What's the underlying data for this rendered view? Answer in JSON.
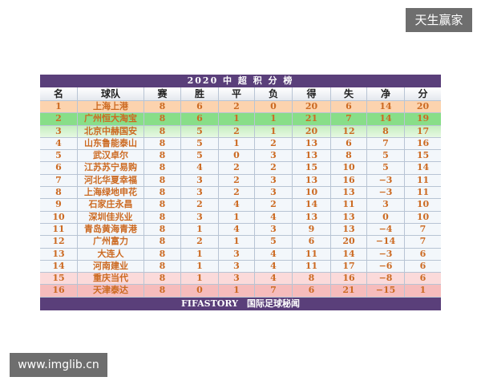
{
  "watermarks": {
    "top": "天生赢家",
    "bottom": "www.imglib.cn"
  },
  "table": {
    "title": "2020 中 超 积 分 榜",
    "headers": [
      "名",
      "球队",
      "赛",
      "胜",
      "平",
      "负",
      "得",
      "失",
      "净",
      "分"
    ],
    "rows": [
      [
        "1",
        "上海上港",
        "8",
        "6",
        "2",
        "0",
        "20",
        "6",
        "14",
        "20"
      ],
      [
        "2",
        "广州恒大淘宝",
        "8",
        "6",
        "1",
        "1",
        "21",
        "7",
        "14",
        "19"
      ],
      [
        "3",
        "北京中赫国安",
        "8",
        "5",
        "2",
        "1",
        "20",
        "12",
        "8",
        "17"
      ],
      [
        "4",
        "山东鲁能泰山",
        "8",
        "5",
        "1",
        "2",
        "13",
        "6",
        "7",
        "16"
      ],
      [
        "5",
        "武汉卓尔",
        "8",
        "5",
        "0",
        "3",
        "13",
        "8",
        "5",
        "15"
      ],
      [
        "6",
        "江苏苏宁易购",
        "8",
        "4",
        "2",
        "2",
        "15",
        "10",
        "5",
        "14"
      ],
      [
        "7",
        "河北华夏幸福",
        "8",
        "3",
        "2",
        "3",
        "13",
        "16",
        "−3",
        "11"
      ],
      [
        "8",
        "上海绿地申花",
        "8",
        "3",
        "2",
        "3",
        "10",
        "13",
        "−3",
        "11"
      ],
      [
        "9",
        "石家庄永昌",
        "8",
        "2",
        "4",
        "2",
        "14",
        "11",
        "3",
        "10"
      ],
      [
        "10",
        "深圳佳兆业",
        "8",
        "3",
        "1",
        "4",
        "13",
        "13",
        "0",
        "10"
      ],
      [
        "11",
        "青岛黄海青港",
        "8",
        "1",
        "4",
        "3",
        "9",
        "13",
        "−4",
        "7"
      ],
      [
        "12",
        "广州富力",
        "8",
        "2",
        "1",
        "5",
        "6",
        "20",
        "−14",
        "7"
      ],
      [
        "13",
        "大连人",
        "8",
        "1",
        "3",
        "4",
        "11",
        "14",
        "−3",
        "6"
      ],
      [
        "14",
        "河南建业",
        "8",
        "1",
        "3",
        "4",
        "11",
        "17",
        "−6",
        "6"
      ],
      [
        "15",
        "重庆当代",
        "8",
        "1",
        "3",
        "4",
        "8",
        "16",
        "−8",
        "6"
      ],
      [
        "16",
        "天津泰达",
        "8",
        "0",
        "1",
        "7",
        "6",
        "21",
        "−15",
        "1"
      ]
    ],
    "footer": "FIFASTORY　国际足球秘闻"
  },
  "colors": {
    "title_bar": "#5a3f7a",
    "text": "#cc6a22",
    "first": "#fcd3ae",
    "second": "#88de88",
    "relegation": "#f6bcbc"
  }
}
